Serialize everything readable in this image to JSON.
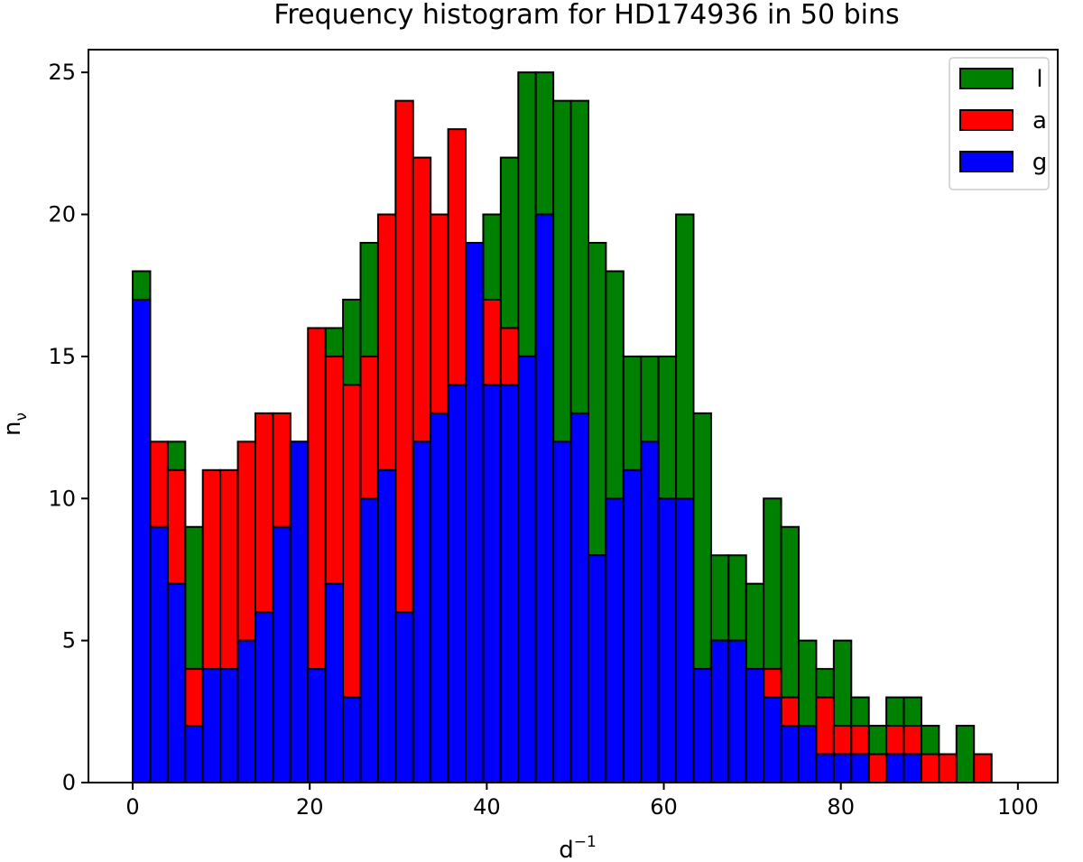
{
  "chart_data": {
    "type": "bar",
    "title": "Frequency histogram for HD174936 in 50 bins",
    "xlabel": "d",
    "xlabel_sup": "−1",
    "ylabel": "n",
    "ylabel_sub": "ν",
    "xlim": [
      -5,
      104.5
    ],
    "ylim": [
      0,
      25.8
    ],
    "x_ticks": [
      0,
      20,
      40,
      60,
      80,
      100
    ],
    "y_ticks": [
      0,
      5,
      10,
      15,
      20,
      25
    ],
    "bin_start": 0,
    "bin_width": 1.98,
    "bins": 50,
    "legend_position": "top-right",
    "series": [
      {
        "name": "l",
        "color": "#008000",
        "values": [
          18,
          9,
          12,
          9,
          9,
          7,
          11,
          10,
          10,
          11,
          12,
          16,
          17,
          19,
          13,
          17,
          20,
          17,
          19,
          17,
          20,
          22,
          25,
          25,
          24,
          24,
          19,
          18,
          15,
          15,
          15,
          20,
          13,
          8,
          8,
          7,
          10,
          9,
          5,
          4,
          5,
          3,
          2,
          3,
          3,
          2,
          1,
          2,
          1,
          0
        ]
      },
      {
        "name": "a",
        "color": "#ff0000",
        "values": [
          17,
          12,
          11,
          4,
          11,
          11,
          12,
          13,
          13,
          12,
          16,
          15,
          14,
          15,
          20,
          24,
          22,
          20,
          23,
          17,
          17,
          16,
          15,
          10,
          9,
          9,
          8,
          7,
          5,
          5,
          5,
          5,
          4,
          5,
          4,
          4,
          4,
          3,
          2,
          3,
          2,
          2,
          1,
          2,
          2,
          1,
          1,
          0,
          1,
          0
        ]
      },
      {
        "name": "g",
        "color": "#0000ff",
        "values": [
          17,
          9,
          7,
          2,
          4,
          4,
          5,
          6,
          9,
          12,
          4,
          7,
          3,
          10,
          11,
          6,
          12,
          13,
          14,
          19,
          14,
          14,
          15,
          20,
          12,
          13,
          8,
          10,
          11,
          12,
          10,
          10,
          4,
          5,
          5,
          4,
          3,
          2,
          2,
          1,
          1,
          1,
          0,
          1,
          1,
          0,
          0,
          0,
          0,
          0
        ]
      }
    ]
  }
}
